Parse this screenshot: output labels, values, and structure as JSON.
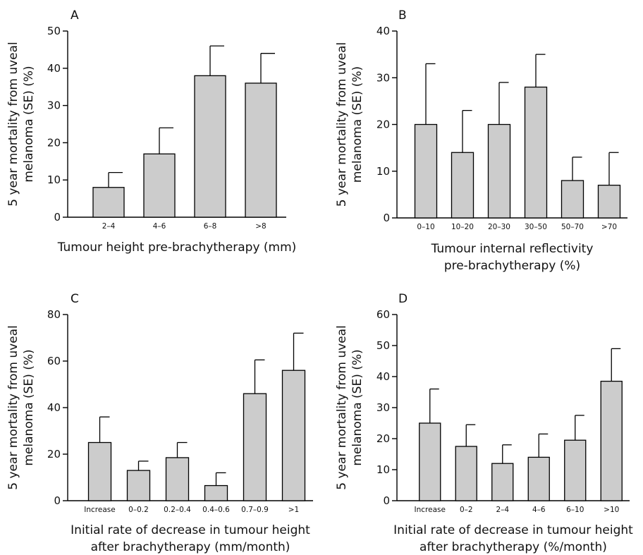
{
  "colors": {
    "bar_fill": "#cccccc",
    "bar_stroke": "#000000",
    "text": "#111111"
  },
  "chart_data": [
    {
      "type": "bar",
      "panel": "A",
      "ylabel": [
        "5 year mortality from uveal",
        "melanoma (SE) (%)"
      ],
      "xlabel": [
        "Tumour height pre-brachytherapy (mm)"
      ],
      "categories": [
        "2–4",
        "4–6",
        "6–8",
        ">8"
      ],
      "values": [
        8,
        17,
        38,
        36
      ],
      "errors": [
        4,
        7,
        8,
        8
      ],
      "ylim": [
        0,
        50
      ],
      "yticks": [
        0,
        10,
        20,
        30,
        40,
        50
      ],
      "grid": false
    },
    {
      "type": "bar",
      "panel": "B",
      "ylabel": [
        "5 year mortality from uveal",
        "melanoma (SE) (%)"
      ],
      "xlabel": [
        "Tumour internal reflectivity",
        "pre-brachytherapy (%)"
      ],
      "categories": [
        "0–10",
        "10–20",
        "20–30",
        "30–50",
        "50–70",
        ">70"
      ],
      "values": [
        20,
        14,
        20,
        28,
        8,
        7
      ],
      "errors": [
        13,
        9,
        9,
        7,
        5,
        7
      ],
      "ylim": [
        0,
        40
      ],
      "yticks": [
        0,
        10,
        20,
        30,
        40
      ],
      "grid": false
    },
    {
      "type": "bar",
      "panel": "C",
      "ylabel": [
        "5 year mortality from uveal",
        "melanoma (SE) (%)"
      ],
      "xlabel": [
        "Initial rate of decrease in tumour height",
        "after brachytherapy (mm/month)"
      ],
      "categories": [
        "Increase",
        "0–0.2",
        "0.2–0.4",
        "0.4–0.6",
        "0.7–0.9",
        ">1"
      ],
      "values": [
        25,
        13,
        18.5,
        6.5,
        46,
        56
      ],
      "errors": [
        11,
        4,
        6.5,
        5.5,
        14.5,
        16
      ],
      "ylim": [
        0,
        80
      ],
      "yticks": [
        0,
        20,
        40,
        60,
        80
      ],
      "grid": false
    },
    {
      "type": "bar",
      "panel": "D",
      "ylabel": [
        "5 year mortality from uveal",
        "melanoma (SE) (%)"
      ],
      "xlabel": [
        "Initial rate of decrease in tumour height",
        "after brachytherapy (%/month)"
      ],
      "categories": [
        "Increase",
        "0–2",
        "2–4",
        "4–6",
        "6–10",
        ">10"
      ],
      "values": [
        25,
        17.5,
        12,
        14,
        19.5,
        38.5
      ],
      "errors": [
        11,
        7,
        6,
        7.5,
        8,
        10.5
      ],
      "ylim": [
        0,
        60
      ],
      "yticks": [
        0,
        10,
        20,
        30,
        40,
        50,
        60
      ],
      "grid": false
    }
  ]
}
